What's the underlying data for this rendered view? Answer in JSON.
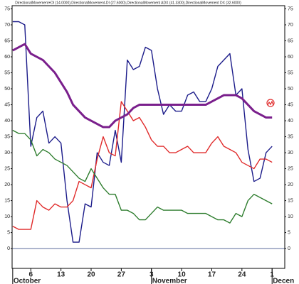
{
  "chart_data": {
    "type": "line",
    "title": "DirectionalMovement+DI (14.0000),DirectionalMovement-DI (27.6000),DirectionalMovement ADX (41.3300),DirectionalMovement DX (32.6000)",
    "x": [
      0,
      1,
      2,
      3,
      4,
      5,
      6,
      7,
      8,
      9,
      10,
      11,
      12,
      13,
      14,
      15,
      16,
      17,
      18,
      19,
      20,
      21,
      22,
      23,
      24,
      25,
      26,
      27,
      28,
      29,
      30,
      31,
      32,
      33,
      34,
      35,
      36,
      37,
      38,
      39,
      40,
      41,
      42,
      43
    ],
    "series": [
      {
        "color": "#1c1c8a",
        "width": 1.4,
        "values": [
          71,
          71,
          70,
          32,
          41,
          43,
          33,
          35,
          33,
          15,
          2,
          2,
          14,
          13,
          30,
          27,
          26,
          37,
          27,
          59,
          56,
          57,
          63,
          62,
          50,
          42,
          45,
          43,
          43,
          48,
          49,
          46,
          46,
          50,
          57,
          59,
          61,
          48,
          50,
          31,
          21,
          22,
          30,
          32
        ]
      },
      {
        "color": "#e02a2a",
        "width": 1.4,
        "values": [
          7,
          6,
          6,
          6,
          15,
          13,
          12,
          14,
          13,
          13,
          15,
          21,
          20,
          19,
          28,
          35,
          30,
          29,
          46,
          43,
          40,
          41,
          38,
          34,
          32,
          32,
          30,
          30,
          31,
          32,
          30,
          30,
          30,
          33,
          35,
          32,
          31,
          30,
          27,
          26,
          25,
          28,
          28,
          27
        ]
      },
      {
        "color": "#2e7d2e",
        "width": 1.4,
        "values": [
          37,
          36,
          36,
          34,
          29,
          31,
          30,
          28,
          27,
          26,
          24,
          22,
          21,
          25,
          22,
          19,
          17,
          17,
          12,
          12,
          11,
          9,
          9,
          11,
          13,
          12,
          12,
          12,
          12,
          11,
          11,
          11,
          11,
          10,
          9,
          9,
          8,
          11,
          10,
          15,
          17,
          16,
          15,
          14
        ]
      },
      {
        "color": "#7a1f8c",
        "width": 3,
        "values": [
          62,
          63,
          64,
          61,
          60,
          59,
          57,
          55,
          52,
          49,
          45,
          43,
          41,
          40,
          39,
          38,
          38,
          40,
          41,
          42,
          44,
          45,
          45,
          45,
          45,
          45,
          45,
          45,
          45,
          45,
          45,
          45,
          45,
          46,
          47,
          48,
          48,
          48,
          47,
          45,
          43,
          42,
          41,
          41
        ]
      }
    ],
    "xlim": [
      -0.1,
      45.1
    ],
    "xticks": [
      {
        "value": 3,
        "label": "6"
      },
      {
        "value": 8,
        "label": "13"
      },
      {
        "value": 13,
        "label": "20"
      },
      {
        "value": 18,
        "label": "27"
      },
      {
        "value": 23,
        "label": "3"
      },
      {
        "value": 28,
        "label": "10"
      },
      {
        "value": 33,
        "label": "17"
      },
      {
        "value": 38,
        "label": "24"
      },
      {
        "value": 43,
        "label": "1"
      }
    ],
    "months": [
      {
        "value": 0,
        "label": "October"
      },
      {
        "value": 23,
        "label": "November"
      },
      {
        "value": 43,
        "label": "Decen"
      }
    ],
    "ylim": [
      -6.2,
      76
    ],
    "yticks": [
      0,
      5,
      10,
      15,
      20,
      25,
      30,
      35,
      40,
      45,
      50,
      55,
      60,
      65,
      70,
      75
    ]
  }
}
